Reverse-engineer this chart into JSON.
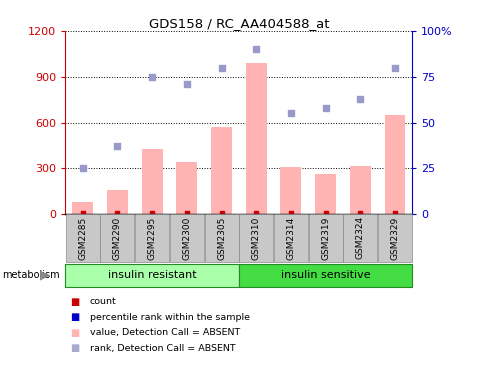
{
  "title": "GDS158 / RC_AA404588_at",
  "samples": [
    "GSM2285",
    "GSM2290",
    "GSM2295",
    "GSM2300",
    "GSM2305",
    "GSM2310",
    "GSM2314",
    "GSM2319",
    "GSM2324",
    "GSM2329"
  ],
  "bar_values": [
    80,
    160,
    430,
    340,
    570,
    990,
    310,
    265,
    315,
    650
  ],
  "scatter_values": [
    25,
    37,
    75,
    71,
    80,
    90,
    55,
    58,
    63,
    80
  ],
  "bar_color": "#FFB3B3",
  "scatter_color": "#9999CC",
  "ylim_left": [
    0,
    1200
  ],
  "ylim_right": [
    0,
    100
  ],
  "yticks_left": [
    0,
    300,
    600,
    900,
    1200
  ],
  "ytick_labels_left": [
    "0",
    "300",
    "600",
    "900",
    "1200"
  ],
  "yticks_right": [
    0,
    25,
    50,
    75,
    100
  ],
  "ytick_labels_right": [
    "0",
    "25",
    "50",
    "75",
    "100%"
  ],
  "left_tick_color": "#CC0000",
  "right_tick_color": "#0000CC",
  "group1_label": "insulin resistant",
  "group2_label": "insulin sensitive",
  "group1_color": "#AAFFAA",
  "group2_color": "#44DD44",
  "group_border_color": "#228B22",
  "metabolism_label": "metabolism",
  "legend_items": [
    {
      "label": "count",
      "color": "#CC0000"
    },
    {
      "label": "percentile rank within the sample",
      "color": "#0000CC"
    },
    {
      "label": "value, Detection Call = ABSENT",
      "color": "#FFB3B3"
    },
    {
      "label": "rank, Detection Call = ABSENT",
      "color": "#AAAACC"
    }
  ],
  "sample_box_color": "#C8C8C8",
  "sample_box_edge": "#888888",
  "fig_width": 4.85,
  "fig_height": 3.66,
  "dpi": 100
}
